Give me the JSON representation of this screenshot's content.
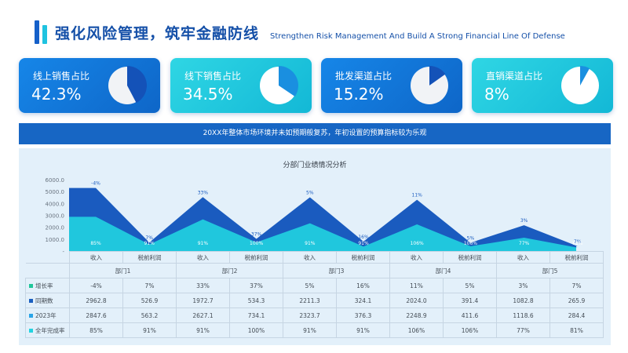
{
  "header": {
    "title": "强化风险管理，筑牢金融防线",
    "subtitle": "Strengthen Risk Management And Build A Strong Financial Line Of Defense"
  },
  "kpis": [
    {
      "label": "线上销售占比",
      "value": "42.3%",
      "fraction": 0.423,
      "style": "blue"
    },
    {
      "label": "线下销售占比",
      "value": "34.5%",
      "fraction": 0.345,
      "style": "cyan"
    },
    {
      "label": "批发渠道占比",
      "value": "15.2%",
      "fraction": 0.152,
      "style": "blue"
    },
    {
      "label": "直销渠道占比",
      "value": "8%",
      "fraction": 0.08,
      "style": "cyan"
    }
  ],
  "banner": "20XX年整体市场环境并未如预期般复苏，年初设置的预算指标较为乐观",
  "chart_data": {
    "type": "area",
    "title": "分部门业绩情况分析",
    "y_ticks": [
      "6000.0",
      "5000.0",
      "4000.0",
      "3000.0",
      "2000.0",
      "1000.0",
      "-"
    ],
    "ylim": [
      0,
      6000
    ],
    "departments": [
      "部门1",
      "部门2",
      "部门3",
      "部门4",
      "部门5"
    ],
    "categories": [
      "收入",
      "税前利润",
      "收入",
      "税前利润",
      "收入",
      "税前利润",
      "收入",
      "税前利润",
      "收入",
      "税前利润"
    ],
    "series": [
      {
        "name": "增长率",
        "color": "#1fc69a",
        "labels": [
          "-4%",
          "7%",
          "33%",
          "37%",
          "5%",
          "16%",
          "11%",
          "5%",
          "3%",
          "7%"
        ]
      },
      {
        "name": "同期数",
        "color": "#1a5fc0",
        "values": [
          2962.8,
          526.9,
          1972.7,
          534.3,
          2211.3,
          324.1,
          2024.0,
          391.4,
          1082.8,
          265.9
        ],
        "labels": [
          "2962.8",
          "526.9",
          "1972.7",
          "534.3",
          "2211.3",
          "324.1",
          "2024.0",
          "391.4",
          "1082.8",
          "265.9"
        ]
      },
      {
        "name": "2023年",
        "color": "#2aa5e8",
        "values": [
          2847.6,
          563.2,
          2627.1,
          734.1,
          2323.7,
          376.3,
          2248.9,
          411.6,
          1118.6,
          284.4
        ],
        "labels": [
          "2847.6",
          "563.2",
          "2627.1",
          "734.1",
          "2323.7",
          "376.3",
          "2248.9",
          "411.6",
          "1118.6",
          "284.4"
        ]
      },
      {
        "name": "全年完成率",
        "color": "#22d3e0",
        "labels": [
          "85%",
          "91%",
          "91%",
          "100%",
          "91%",
          "91%",
          "106%",
          "106%",
          "77%",
          "81%"
        ]
      }
    ],
    "layers": {
      "dark_top_values": [
        5300,
        720,
        4530,
        1020,
        4520,
        800,
        4310,
        700,
        2170,
        400
      ],
      "dark_top_labels": [
        "-4%",
        "7%",
        "33%",
        "37%",
        "5%",
        "16%",
        "11%",
        "5%",
        "3%",
        "7%"
      ],
      "cyan_top_values": [
        2880,
        550,
        2660,
        730,
        2330,
        380,
        2240,
        400,
        1120,
        280
      ],
      "cyan_top_labels": [
        "85%",
        "91%",
        "91%",
        "100%",
        "91%",
        "91%",
        "106%",
        "106%",
        "77%",
        "81%"
      ]
    }
  }
}
